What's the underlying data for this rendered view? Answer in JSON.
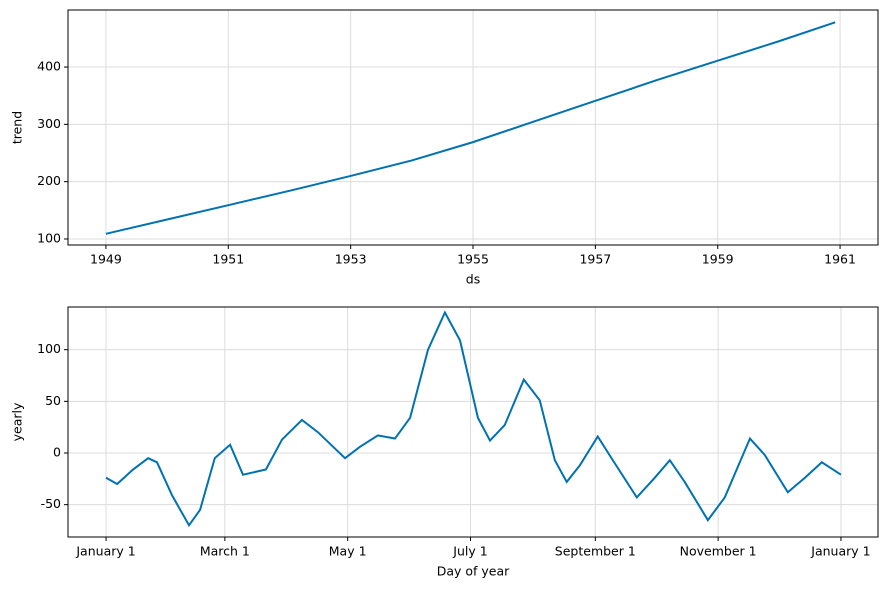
{
  "chart_data": [
    {
      "type": "line",
      "xlabel": "ds",
      "ylabel": "trend",
      "color": "#0072B2",
      "grid": true,
      "x": [
        1949,
        1950,
        1951,
        1952,
        1953,
        1954,
        1955,
        1956,
        1957,
        1958,
        1959,
        1960,
        1960.92
      ],
      "values": [
        109,
        134,
        159,
        184,
        210,
        237,
        269,
        305,
        341,
        377,
        411,
        445,
        478
      ],
      "xlim": [
        1948.38,
        1961.62
      ],
      "xticks": [
        1949,
        1951,
        1953,
        1955,
        1957,
        1959,
        1961
      ],
      "ylim": [
        89.5,
        499.5
      ],
      "yticks": [
        100,
        200,
        300,
        400
      ]
    },
    {
      "type": "line",
      "xlabel": "Day of year",
      "ylabel": "yearly",
      "color": "#0072B2",
      "grid": true,
      "x": [
        0,
        5.5,
        13.4,
        20.9,
        25.3,
        32.8,
        41.2,
        46.7,
        54,
        61.6,
        68,
        79.4,
        87.4,
        97.3,
        105.3,
        118.7,
        126.1,
        135,
        143.5,
        151,
        159.9,
        168.3,
        175.8,
        184.7,
        190.7,
        198,
        207.5,
        215.4,
        222.9,
        228.8,
        235.3,
        244.2,
        251.7,
        263.6,
        272.5,
        280,
        287.4,
        298.9,
        307.3,
        319.8,
        327.2,
        338.6,
        347.1,
        355.5,
        365
      ],
      "values": [
        -24,
        -30,
        -16,
        -5,
        -9,
        -41,
        -70,
        -55,
        -5,
        8,
        -21,
        -16,
        13,
        32,
        20,
        -5,
        6,
        17,
        14,
        34,
        100,
        136,
        109,
        34,
        12,
        27,
        71,
        51,
        -7,
        -28,
        -12,
        16,
        -7,
        -43,
        -24,
        -7,
        -28,
        -65,
        -43,
        14,
        -2,
        -38,
        -24,
        -9,
        -21
      ],
      "xlim": [
        -18.9,
        383.4
      ],
      "xticks": [
        {
          "value": 0,
          "label": "January 1"
        },
        {
          "value": 59,
          "label": "March 1"
        },
        {
          "value": 120,
          "label": "May 1"
        },
        {
          "value": 181,
          "label": "July 1"
        },
        {
          "value": 243,
          "label": "September 1"
        },
        {
          "value": 304,
          "label": "November 1"
        },
        {
          "value": 365,
          "label": "January 1"
        }
      ],
      "ylim": [
        -81.3,
        141.3
      ],
      "yticks": [
        -50,
        0,
        50,
        100
      ]
    }
  ]
}
